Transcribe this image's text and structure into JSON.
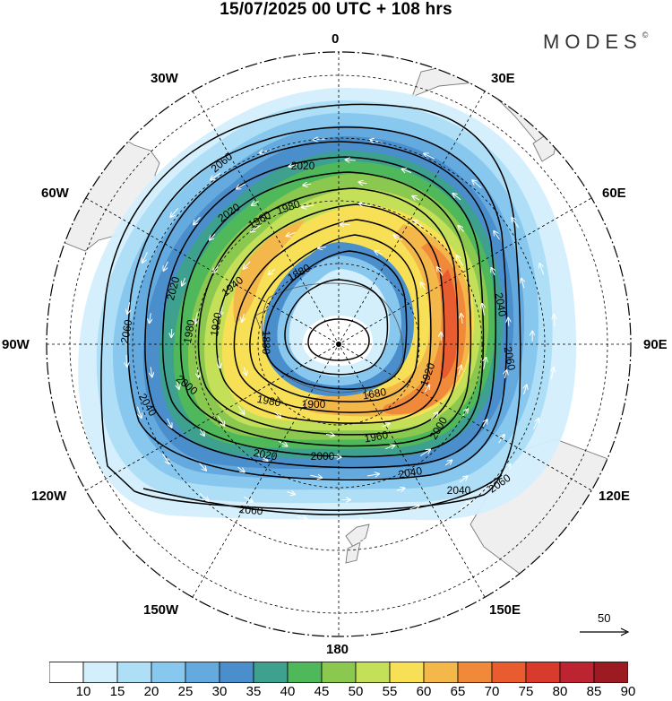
{
  "title": "15/07/2025  00 UTC  + 108 hrs",
  "brand": "MODES",
  "brand_mark": "©",
  "longitude_labels": {
    "n0": "0",
    "n30e": "30E",
    "n60e": "60E",
    "n90e": "90E",
    "n120e": "120E",
    "n150e": "150E",
    "n180": "180",
    "n150w": "150W",
    "n120w": "120W",
    "n90w": "90W",
    "n60w": "60W",
    "n30w": "30W"
  },
  "vector_reference": {
    "value": "50",
    "icon": "arrow-right-icon"
  },
  "colorbar": {
    "ticks": [
      "10",
      "15",
      "20",
      "25",
      "30",
      "35",
      "40",
      "45",
      "50",
      "55",
      "60",
      "65",
      "70",
      "75",
      "80",
      "85",
      "90"
    ],
    "colors": [
      "#ffffff",
      "#d3effc",
      "#aedff7",
      "#88c8ee",
      "#64aadf",
      "#4a8fcb",
      "#3ea08e",
      "#4fb85a",
      "#8bc84f",
      "#c4df58",
      "#f7e055",
      "#f4b84a",
      "#f08a3a",
      "#e95c30",
      "#d83a2c",
      "#bb2430",
      "#9c1a22"
    ]
  },
  "contour_labels": [
    "1680",
    "1880",
    "1900",
    "1920",
    "1940",
    "1960",
    "1980",
    "2000",
    "2020",
    "2040",
    "2060"
  ],
  "colors": {
    "land": "#efefef",
    "coast": "#777777",
    "contour": "#000000",
    "vectors": "#ffffff"
  }
}
